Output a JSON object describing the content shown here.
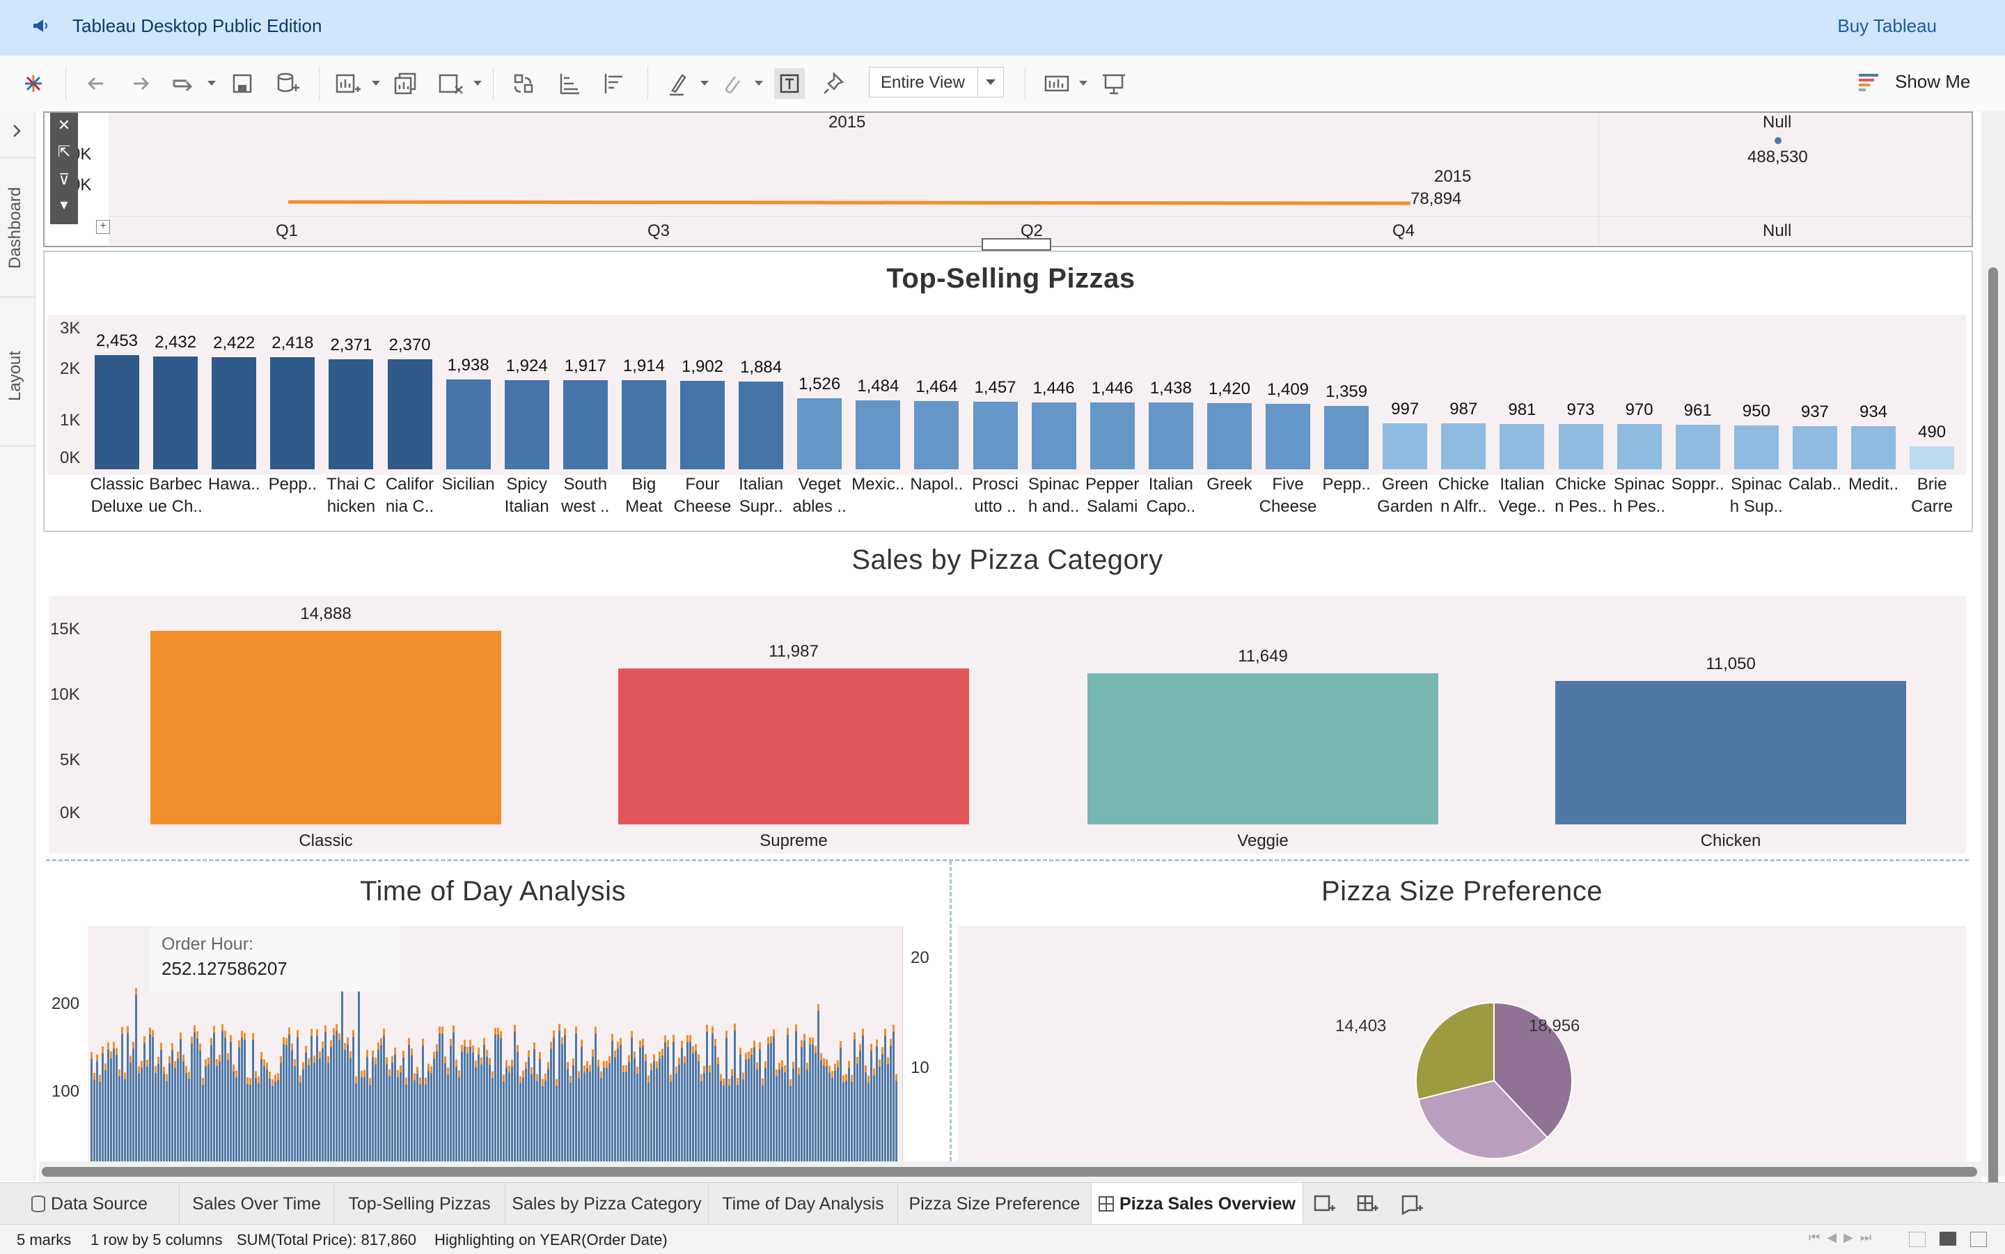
{
  "banner": {
    "title": "Tableau Desktop Public Edition",
    "buy": "Buy Tableau"
  },
  "toolbar": {
    "view_mode": "Entire View",
    "show_me": "Show Me"
  },
  "left_tabs": {
    "dashboard": "Dashboard",
    "layout": "Layout"
  },
  "sales_over_time": {
    "year_header": "2015",
    "null_header": "Null",
    "null_value": "488,530",
    "y_ticks": [
      "0K",
      "0K"
    ],
    "end_label_year": "2015",
    "end_label_value": "78,894",
    "x_labels": [
      "Q1",
      "Q3",
      "Q2",
      "Q4",
      "Null"
    ]
  },
  "top_selling": {
    "title": "Top-Selling Pizzas",
    "y_ticks": [
      "3K",
      "2K",
      "1K",
      "0K"
    ],
    "ymax": 3000,
    "bars": [
      {
        "value": 2453,
        "label": "2,453",
        "name1": "Classic",
        "name2": "Deluxe"
      },
      {
        "value": 2432,
        "label": "2,432",
        "name1": "Barbec",
        "name2": "ue Ch.."
      },
      {
        "value": 2422,
        "label": "2,422",
        "name1": "Hawa..",
        "name2": ""
      },
      {
        "value": 2418,
        "label": "2,418",
        "name1": "Pepp..",
        "name2": ""
      },
      {
        "value": 2371,
        "label": "2,371",
        "name1": "Thai C",
        "name2": "hicken"
      },
      {
        "value": 2370,
        "label": "2,370",
        "name1": "Califor",
        "name2": "nia C.."
      },
      {
        "value": 1938,
        "label": "1,938",
        "name1": "Sicilian",
        "name2": ""
      },
      {
        "value": 1924,
        "label": "1,924",
        "name1": "Spicy",
        "name2": "Italian"
      },
      {
        "value": 1917,
        "label": "1,917",
        "name1": "South",
        "name2": "west .."
      },
      {
        "value": 1914,
        "label": "1,914",
        "name1": "Big",
        "name2": "Meat"
      },
      {
        "value": 1902,
        "label": "1,902",
        "name1": "Four",
        "name2": "Cheese"
      },
      {
        "value": 1884,
        "label": "1,884",
        "name1": "Italian",
        "name2": "Supr.."
      },
      {
        "value": 1526,
        "label": "1,526",
        "name1": "Veget",
        "name2": "ables .."
      },
      {
        "value": 1484,
        "label": "1,484",
        "name1": "Mexic..",
        "name2": ""
      },
      {
        "value": 1464,
        "label": "1,464",
        "name1": "Napol..",
        "name2": ""
      },
      {
        "value": 1457,
        "label": "1,457",
        "name1": "Prosci",
        "name2": "utto .."
      },
      {
        "value": 1446,
        "label": "1,446",
        "name1": "Spinac",
        "name2": "h and.."
      },
      {
        "value": 1446,
        "label": "1,446",
        "name1": "Pepper",
        "name2": "Salami"
      },
      {
        "value": 1438,
        "label": "1,438",
        "name1": "Italian",
        "name2": "Capo.."
      },
      {
        "value": 1420,
        "label": "1,420",
        "name1": "Greek",
        "name2": ""
      },
      {
        "value": 1409,
        "label": "1,409",
        "name1": "Five",
        "name2": "Cheese"
      },
      {
        "value": 1359,
        "label": "1,359",
        "name1": "Pepp..",
        "name2": ""
      },
      {
        "value": 997,
        "label": "997",
        "name1": "Green",
        "name2": "Garden"
      },
      {
        "value": 987,
        "label": "987",
        "name1": "Chicke",
        "name2": "n Alfr.."
      },
      {
        "value": 981,
        "label": "981",
        "name1": "Italian",
        "name2": "Vege.."
      },
      {
        "value": 973,
        "label": "973",
        "name1": "Chicke",
        "name2": "n Pes.."
      },
      {
        "value": 970,
        "label": "970",
        "name1": "Spinac",
        "name2": "h Pes.."
      },
      {
        "value": 961,
        "label": "961",
        "name1": "Soppr..",
        "name2": ""
      },
      {
        "value": 950,
        "label": "950",
        "name1": "Spinac",
        "name2": "h Sup.."
      },
      {
        "value": 937,
        "label": "937",
        "name1": "Calab..",
        "name2": ""
      },
      {
        "value": 934,
        "label": "934",
        "name1": "Medit..",
        "name2": ""
      },
      {
        "value": 490,
        "label": "490",
        "name1": "Brie",
        "name2": "Carre"
      }
    ]
  },
  "category": {
    "title": "Sales by Pizza Category",
    "y_ticks": [
      "15K",
      "10K",
      "5K",
      "0K"
    ],
    "ymax": 15000,
    "bars": [
      {
        "name": "Classic",
        "value": 14888,
        "label": "14,888",
        "color": "#f28e2b"
      },
      {
        "name": "Supreme",
        "value": 11987,
        "label": "11,987",
        "color": "#e15759"
      },
      {
        "name": "Veggie",
        "value": 11649,
        "label": "11,649",
        "color": "#76b7b2"
      },
      {
        "name": "Chicken",
        "value": 11050,
        "label": "11,050",
        "color": "#4e79a7"
      }
    ]
  },
  "time_of_day": {
    "title": "Time of Day Analysis",
    "left_ticks": [
      "200",
      "100"
    ],
    "right_ticks": [
      "20",
      "10"
    ],
    "tooltip_label": "Order Hour:",
    "tooltip_value": "252.127586207"
  },
  "size_pref": {
    "title": "Pizza Size Preference",
    "slices": [
      {
        "label": "18,956",
        "value": 18956,
        "color": "#8f7294"
      },
      {
        "label": "",
        "value": 16500,
        "color": "#b99fbd"
      },
      {
        "label": "14,403",
        "value": 14403,
        "color": "#9c9b3f"
      }
    ]
  },
  "tabs": [
    {
      "label": "Data Source"
    },
    {
      "label": "Sales Over Time"
    },
    {
      "label": "Top-Selling Pizzas"
    },
    {
      "label": "Sales by Pizza Category"
    },
    {
      "label": "Time of Day Analysis"
    },
    {
      "label": "Pizza Size Preference"
    },
    {
      "label": "Pizza Sales Overview"
    }
  ],
  "status": {
    "marks": "5 marks",
    "rows_cols": "1 row by 5 columns",
    "sum": "SUM(Total Price): 817,860",
    "highlight": "Highlighting on YEAR(Order Date)"
  }
}
